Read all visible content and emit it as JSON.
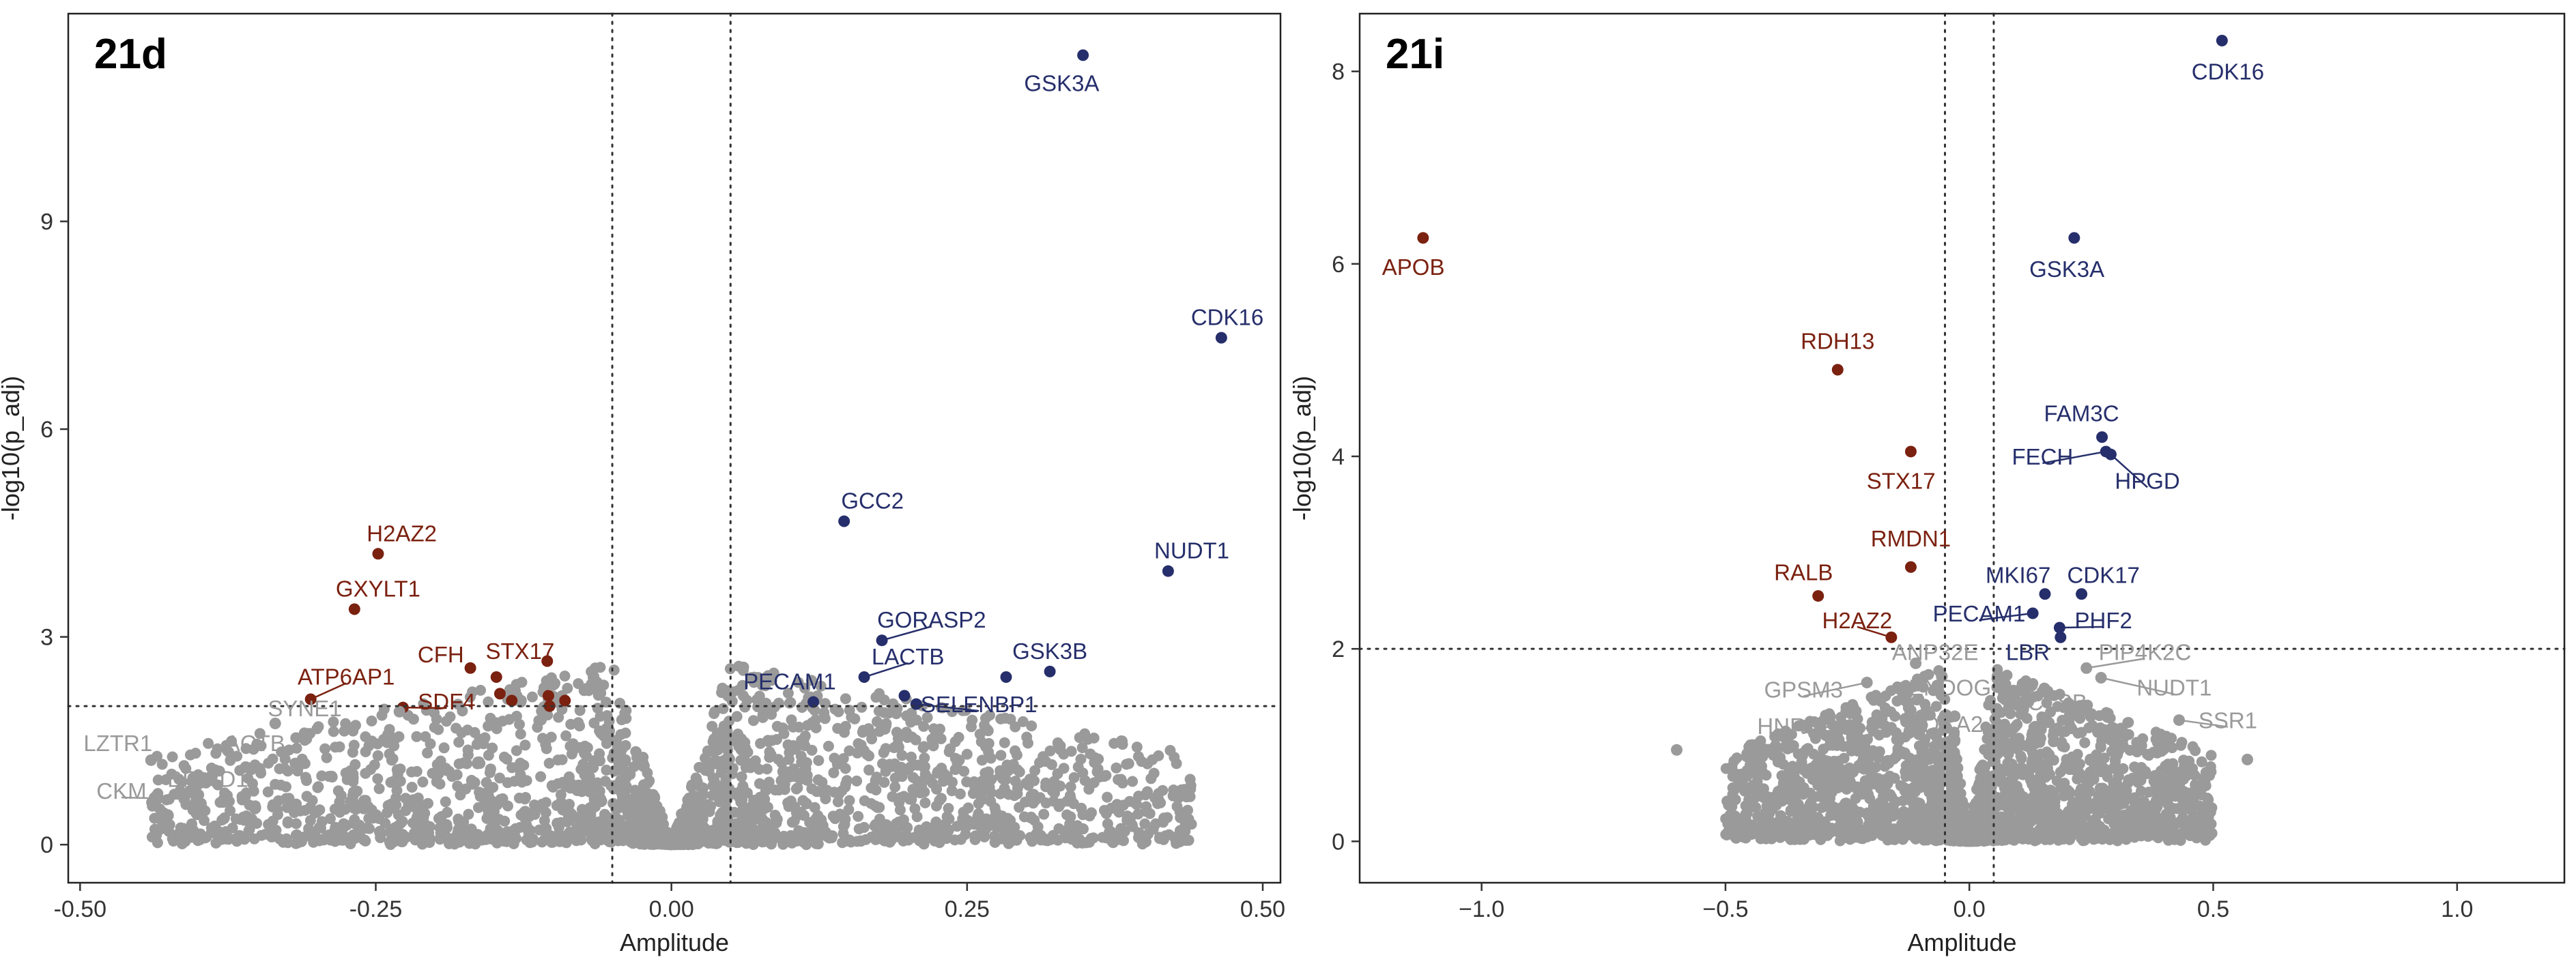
{
  "colors": {
    "up": "#262f6b",
    "down": "#7b2110",
    "ns": "#9a9a9a",
    "frame": "#222222"
  },
  "chart_data": [
    {
      "type": "scatter",
      "title": "21d",
      "xlabel": "Amplitude",
      "ylabel": "-log10(p_adj)",
      "xlim": [
        -0.51,
        0.515
      ],
      "ylim": [
        -0.55,
        12.0
      ],
      "xticks": [
        -0.5,
        -0.25,
        0,
        0.25,
        0.5
      ],
      "xtick_labels": [
        "-0.50",
        "-0.25",
        "0.00",
        "0.25",
        "0.50"
      ],
      "yticks": [
        0,
        3,
        6,
        9
      ],
      "ytick_labels": [
        "0",
        "3",
        "6",
        "9"
      ],
      "vlines": [
        -0.05,
        0.05
      ],
      "hline": 2,
      "cloud": {
        "xhalf": 0.44,
        "ymax_near": 2.6,
        "ymax_far": 1.3,
        "count": 2300
      },
      "points": [
        {
          "x": 0.348,
          "y": 11.4,
          "label": "GSK3A",
          "group": "up",
          "lx": 0.33,
          "ly": 11.0
        },
        {
          "x": 0.465,
          "y": 7.32,
          "label": "CDK16",
          "group": "up",
          "lx": 0.47,
          "ly": 7.62
        },
        {
          "x": 0.146,
          "y": 4.67,
          "label": "GCC2",
          "group": "up",
          "lx": 0.17,
          "ly": 4.97
        },
        {
          "x": 0.42,
          "y": 3.95,
          "label": "NUDT1",
          "group": "up",
          "lx": 0.44,
          "ly": 4.25
        },
        {
          "x": 0.178,
          "y": 2.95,
          "label": "GORASP2",
          "group": "up",
          "lx": 0.22,
          "ly": 3.25
        },
        {
          "x": 0.163,
          "y": 2.42,
          "label": "LACTB",
          "group": "up",
          "lx": 0.2,
          "ly": 2.72
        },
        {
          "x": 0.32,
          "y": 2.5,
          "label": "GSK3B",
          "group": "up",
          "lx": 0.32,
          "ly": 2.8
        },
        {
          "x": 0.283,
          "y": 2.42,
          "label": "",
          "group": "up"
        },
        {
          "x": 0.12,
          "y": 2.06,
          "label": "PECAM1",
          "group": "up",
          "lx": 0.1,
          "ly": 2.36
        },
        {
          "x": 0.197,
          "y": 2.15,
          "label": "",
          "group": "up"
        },
        {
          "x": 0.207,
          "y": 2.03,
          "label": "SELENBP1",
          "group": "up",
          "lx": 0.26,
          "ly": 2.03
        },
        {
          "x": -0.248,
          "y": 4.2,
          "label": "H2AZ2",
          "group": "down",
          "lx": -0.228,
          "ly": 4.5
        },
        {
          "x": -0.268,
          "y": 3.4,
          "label": "GXYLT1",
          "group": "down",
          "lx": -0.248,
          "ly": 3.7
        },
        {
          "x": -0.305,
          "y": 2.1,
          "label": "ATP6AP1",
          "group": "down",
          "lx": -0.275,
          "ly": 2.43
        },
        {
          "x": -0.17,
          "y": 2.55,
          "label": "CFH",
          "group": "down",
          "lx": -0.195,
          "ly": 2.75
        },
        {
          "x": -0.148,
          "y": 2.42,
          "label": "STX17",
          "group": "down",
          "lx": -0.128,
          "ly": 2.8
        },
        {
          "x": -0.105,
          "y": 2.65,
          "label": "",
          "group": "down"
        },
        {
          "x": -0.227,
          "y": 1.98,
          "label": "SDF4",
          "group": "down",
          "lx": -0.19,
          "ly": 2.07
        },
        {
          "x": -0.145,
          "y": 2.18,
          "label": "",
          "group": "down"
        },
        {
          "x": -0.135,
          "y": 2.08,
          "label": "",
          "group": "down"
        },
        {
          "x": -0.104,
          "y": 2.15,
          "label": "",
          "group": "down"
        },
        {
          "x": -0.103,
          "y": 2.0,
          "label": "",
          "group": "down"
        },
        {
          "x": -0.09,
          "y": 2.08,
          "label": "",
          "group": "down"
        },
        {
          "x": -0.44,
          "y": 1.22,
          "label": "LZTR1",
          "group": "ns",
          "lx": -0.468,
          "ly": 1.47
        },
        {
          "x": -0.36,
          "y": 1.12,
          "label": "ACTB",
          "group": "ns",
          "lx": -0.352,
          "ly": 1.47
        },
        {
          "x": -0.335,
          "y": 1.75,
          "label": "SYNE1",
          "group": "ns",
          "lx": -0.31,
          "ly": 1.97
        },
        {
          "x": -0.4,
          "y": 0.72,
          "label": "BRWD1",
          "group": "ns",
          "lx": -0.392,
          "ly": 0.95
        },
        {
          "x": -0.412,
          "y": 0.66,
          "label": "CKM",
          "group": "ns",
          "lx": -0.465,
          "ly": 0.78
        },
        {
          "x": -0.23,
          "y": 1.92,
          "label": "",
          "group": "ns"
        }
      ]
    },
    {
      "type": "scatter",
      "title": "21i",
      "xlabel": "Amplitude",
      "ylabel": "-log10(p_adj)",
      "xlim": [
        -1.25,
        1.22
      ],
      "ylim": [
        -0.43,
        8.6
      ],
      "xticks": [
        -1.0,
        -0.5,
        0,
        0.5,
        1.0
      ],
      "xtick_labels": [
        "−1.0",
        "−0.5",
        "0.0",
        "0.5",
        "1.0"
      ],
      "yticks": [
        0,
        2,
        4,
        6,
        8
      ],
      "ytick_labels": [
        "0",
        "2",
        "4",
        "6",
        "8"
      ],
      "vlines": [
        -0.05,
        0.05
      ],
      "hline": 2,
      "cloud": {
        "xhalf": 0.5,
        "ymax_near": 1.8,
        "ymax_far": 0.9,
        "count": 2300
      },
      "points": [
        {
          "x": 0.518,
          "y": 8.32,
          "label": "CDK16",
          "group": "up",
          "lx": 0.53,
          "ly": 8.0
        },
        {
          "x": 0.215,
          "y": 6.27,
          "label": "GSK3A",
          "group": "up",
          "lx": 0.2,
          "ly": 5.95
        },
        {
          "x": 0.272,
          "y": 4.2,
          "label": "FAM3C",
          "group": "up",
          "lx": 0.23,
          "ly": 4.45
        },
        {
          "x": 0.28,
          "y": 4.05,
          "label": "FECH",
          "group": "up",
          "lx": 0.15,
          "ly": 4.0
        },
        {
          "x": 0.29,
          "y": 4.02,
          "label": "HPGD",
          "group": "up",
          "lx": 0.365,
          "ly": 3.75
        },
        {
          "x": 0.155,
          "y": 2.57,
          "label": "MKI67",
          "group": "up",
          "lx": 0.1,
          "ly": 2.77
        },
        {
          "x": 0.23,
          "y": 2.57,
          "label": "CDK17",
          "group": "up",
          "lx": 0.275,
          "ly": 2.77
        },
        {
          "x": 0.13,
          "y": 2.37,
          "label": "PECAM1",
          "group": "up",
          "lx": 0.02,
          "ly": 2.37
        },
        {
          "x": 0.185,
          "y": 2.22,
          "label": "PHF2",
          "group": "up",
          "lx": 0.275,
          "ly": 2.3
        },
        {
          "x": 0.187,
          "y": 2.12,
          "label": "LBR",
          "group": "up",
          "lx": 0.12,
          "ly": 1.97
        },
        {
          "x": -1.12,
          "y": 6.27,
          "label": "APOB",
          "group": "down",
          "lx": -1.14,
          "ly": 5.97
        },
        {
          "x": -0.27,
          "y": 4.9,
          "label": "RDH13",
          "group": "down",
          "lx": -0.27,
          "ly": 5.2
        },
        {
          "x": -0.12,
          "y": 4.05,
          "label": "STX17",
          "group": "down",
          "lx": -0.14,
          "ly": 3.75
        },
        {
          "x": -0.12,
          "y": 2.85,
          "label": "RMDN1",
          "group": "down",
          "lx": -0.12,
          "ly": 3.15
        },
        {
          "x": -0.31,
          "y": 2.55,
          "label": "RALB",
          "group": "down",
          "lx": -0.34,
          "ly": 2.8
        },
        {
          "x": -0.16,
          "y": 2.12,
          "label": "H2AZ2",
          "group": "down",
          "lx": -0.23,
          "ly": 2.3
        },
        {
          "x": -0.11,
          "y": 1.85,
          "label": "ANP32E",
          "group": "ns",
          "lx": -0.07,
          "ly": 1.97
        },
        {
          "x": 0.24,
          "y": 1.8,
          "label": "PIP4K2C",
          "group": "ns",
          "lx": 0.36,
          "ly": 1.97
        },
        {
          "x": -0.21,
          "y": 1.65,
          "label": "GPSM3",
          "group": "ns",
          "lx": -0.34,
          "ly": 1.58
        },
        {
          "x": -0.07,
          "y": 1.58,
          "label": "ENDOG",
          "group": "ns",
          "lx": -0.04,
          "ly": 1.6
        },
        {
          "x": 0.13,
          "y": 1.5,
          "label": "CTSB",
          "group": "ns",
          "lx": 0.18,
          "ly": 1.45
        },
        {
          "x": 0.27,
          "y": 1.7,
          "label": "NUDT1",
          "group": "ns",
          "lx": 0.42,
          "ly": 1.6
        },
        {
          "x": -0.2,
          "y": 1.18,
          "label": "HNRNPL",
          "group": "ns",
          "lx": -0.34,
          "ly": 1.2
        },
        {
          "x": -0.03,
          "y": 1.3,
          "label": "CDCA2",
          "group": "ns",
          "lx": -0.05,
          "ly": 1.22
        },
        {
          "x": 0.43,
          "y": 1.26,
          "label": "SSR1",
          "group": "ns",
          "lx": 0.53,
          "ly": 1.26
        },
        {
          "x": 0.57,
          "y": 0.85,
          "label": "",
          "group": "ns"
        },
        {
          "x": -0.6,
          "y": 0.95,
          "label": "",
          "group": "ns"
        }
      ]
    }
  ]
}
